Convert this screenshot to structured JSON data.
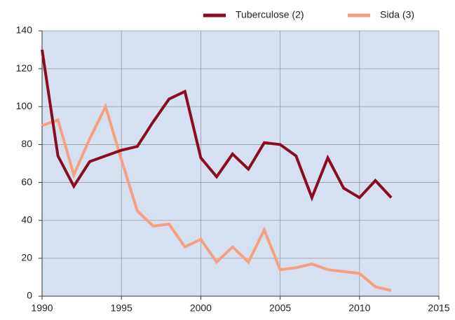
{
  "chart_data": {
    "type": "line",
    "x": [
      1990,
      1991,
      1992,
      1993,
      1994,
      1995,
      1996,
      1997,
      1998,
      1999,
      2000,
      2001,
      2002,
      2003,
      2004,
      2005,
      2006,
      2007,
      2008,
      2009,
      2010,
      2011,
      2012
    ],
    "series": [
      {
        "name": "Tuberculose (2)",
        "color": "#8c0b1f",
        "values": [
          130,
          74,
          58,
          71,
          74,
          77,
          79,
          92,
          104,
          108,
          73,
          63,
          75,
          67,
          81,
          80,
          74,
          52,
          73,
          57,
          52,
          61,
          52
        ]
      },
      {
        "name": "Sida (3)",
        "color": "#f4a081",
        "values": [
          90,
          93,
          64,
          83,
          100,
          72,
          45,
          37,
          38,
          26,
          30,
          18,
          26,
          18,
          35,
          14,
          15,
          17,
          14,
          13,
          12,
          5,
          3
        ]
      }
    ],
    "xlim": [
      1990,
      2015
    ],
    "xticks": [
      1990,
      1995,
      2000,
      2005,
      2010,
      2015
    ],
    "ylim": [
      0,
      140
    ],
    "yticks": [
      0,
      20,
      40,
      60,
      80,
      100,
      120,
      140
    ],
    "grid": true,
    "legend": "top-right"
  }
}
